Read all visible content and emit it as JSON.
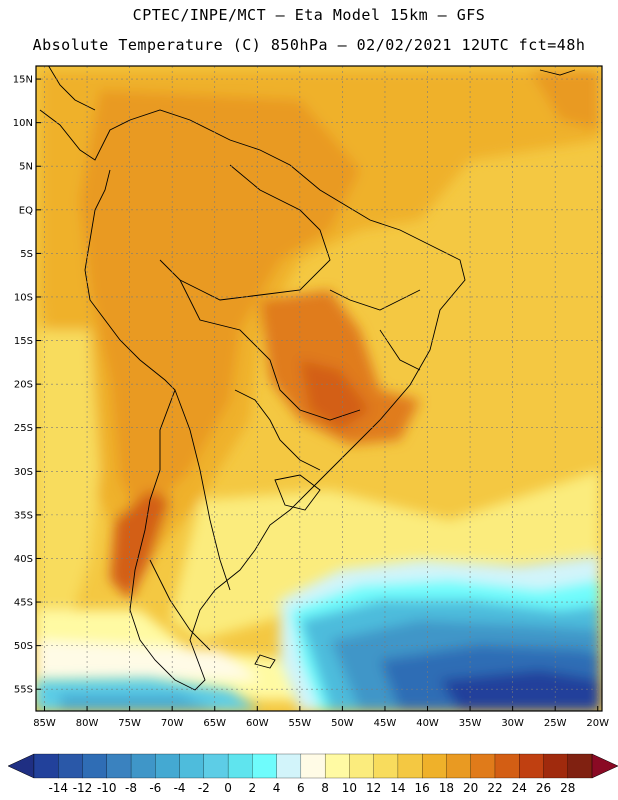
{
  "title": {
    "line1": "CPTEC/INPE/MCT —  Eta Model 15km — GFS",
    "line2": "Absolute Temperature (C) 850hPa — 02/02/2021 12UTC fct=48h"
  },
  "map": {
    "lat_labels": [
      "15N",
      "10N",
      "5N",
      "EQ",
      "5S",
      "10S",
      "15S",
      "20S",
      "25S",
      "30S",
      "35S",
      "40S",
      "45S",
      "50S",
      "55S"
    ],
    "lat_values": [
      15,
      10,
      5,
      0,
      -5,
      -10,
      -15,
      -20,
      -25,
      -30,
      -35,
      -40,
      -45,
      -50,
      -55
    ],
    "lon_labels": [
      "85W",
      "80W",
      "75W",
      "70W",
      "65W",
      "60W",
      "55W",
      "50W",
      "45W",
      "40W",
      "35W",
      "30W",
      "25W",
      "20W"
    ],
    "lon_values": [
      -85,
      -80,
      -75,
      -70,
      -65,
      -60,
      -55,
      -50,
      -45,
      -40,
      -35,
      -30,
      -25,
      -20
    ],
    "lat_range": [
      -57.5,
      16.5
    ],
    "lon_range": [
      -86,
      -19.5
    ],
    "grid": true
  },
  "colorbar": {
    "labels": [
      "-14",
      "-12",
      "-10",
      "-8",
      "-6",
      "-4",
      "-2",
      "0",
      "2",
      "4",
      "6",
      "8",
      "10",
      "12",
      "14",
      "16",
      "18",
      "20",
      "22",
      "24",
      "26",
      "28"
    ],
    "colors": [
      "#22419b",
      "#2a58a8",
      "#2f6db5",
      "#3a82bf",
      "#3f96c8",
      "#44a9d2",
      "#4ebcdc",
      "#5dcde6",
      "#5fe4ee",
      "#6ffcfc",
      "#d2f4fa",
      "#fffbe6",
      "#fffaa3",
      "#fbec7d",
      "#f8dc5d",
      "#f4c842",
      "#efb12a",
      "#e99a22",
      "#e07b1a",
      "#d35e14",
      "#c04011",
      "#a02a0d",
      "#802111"
    ],
    "under_color": "#1f2f83",
    "over_color": "#8a0a24"
  }
}
